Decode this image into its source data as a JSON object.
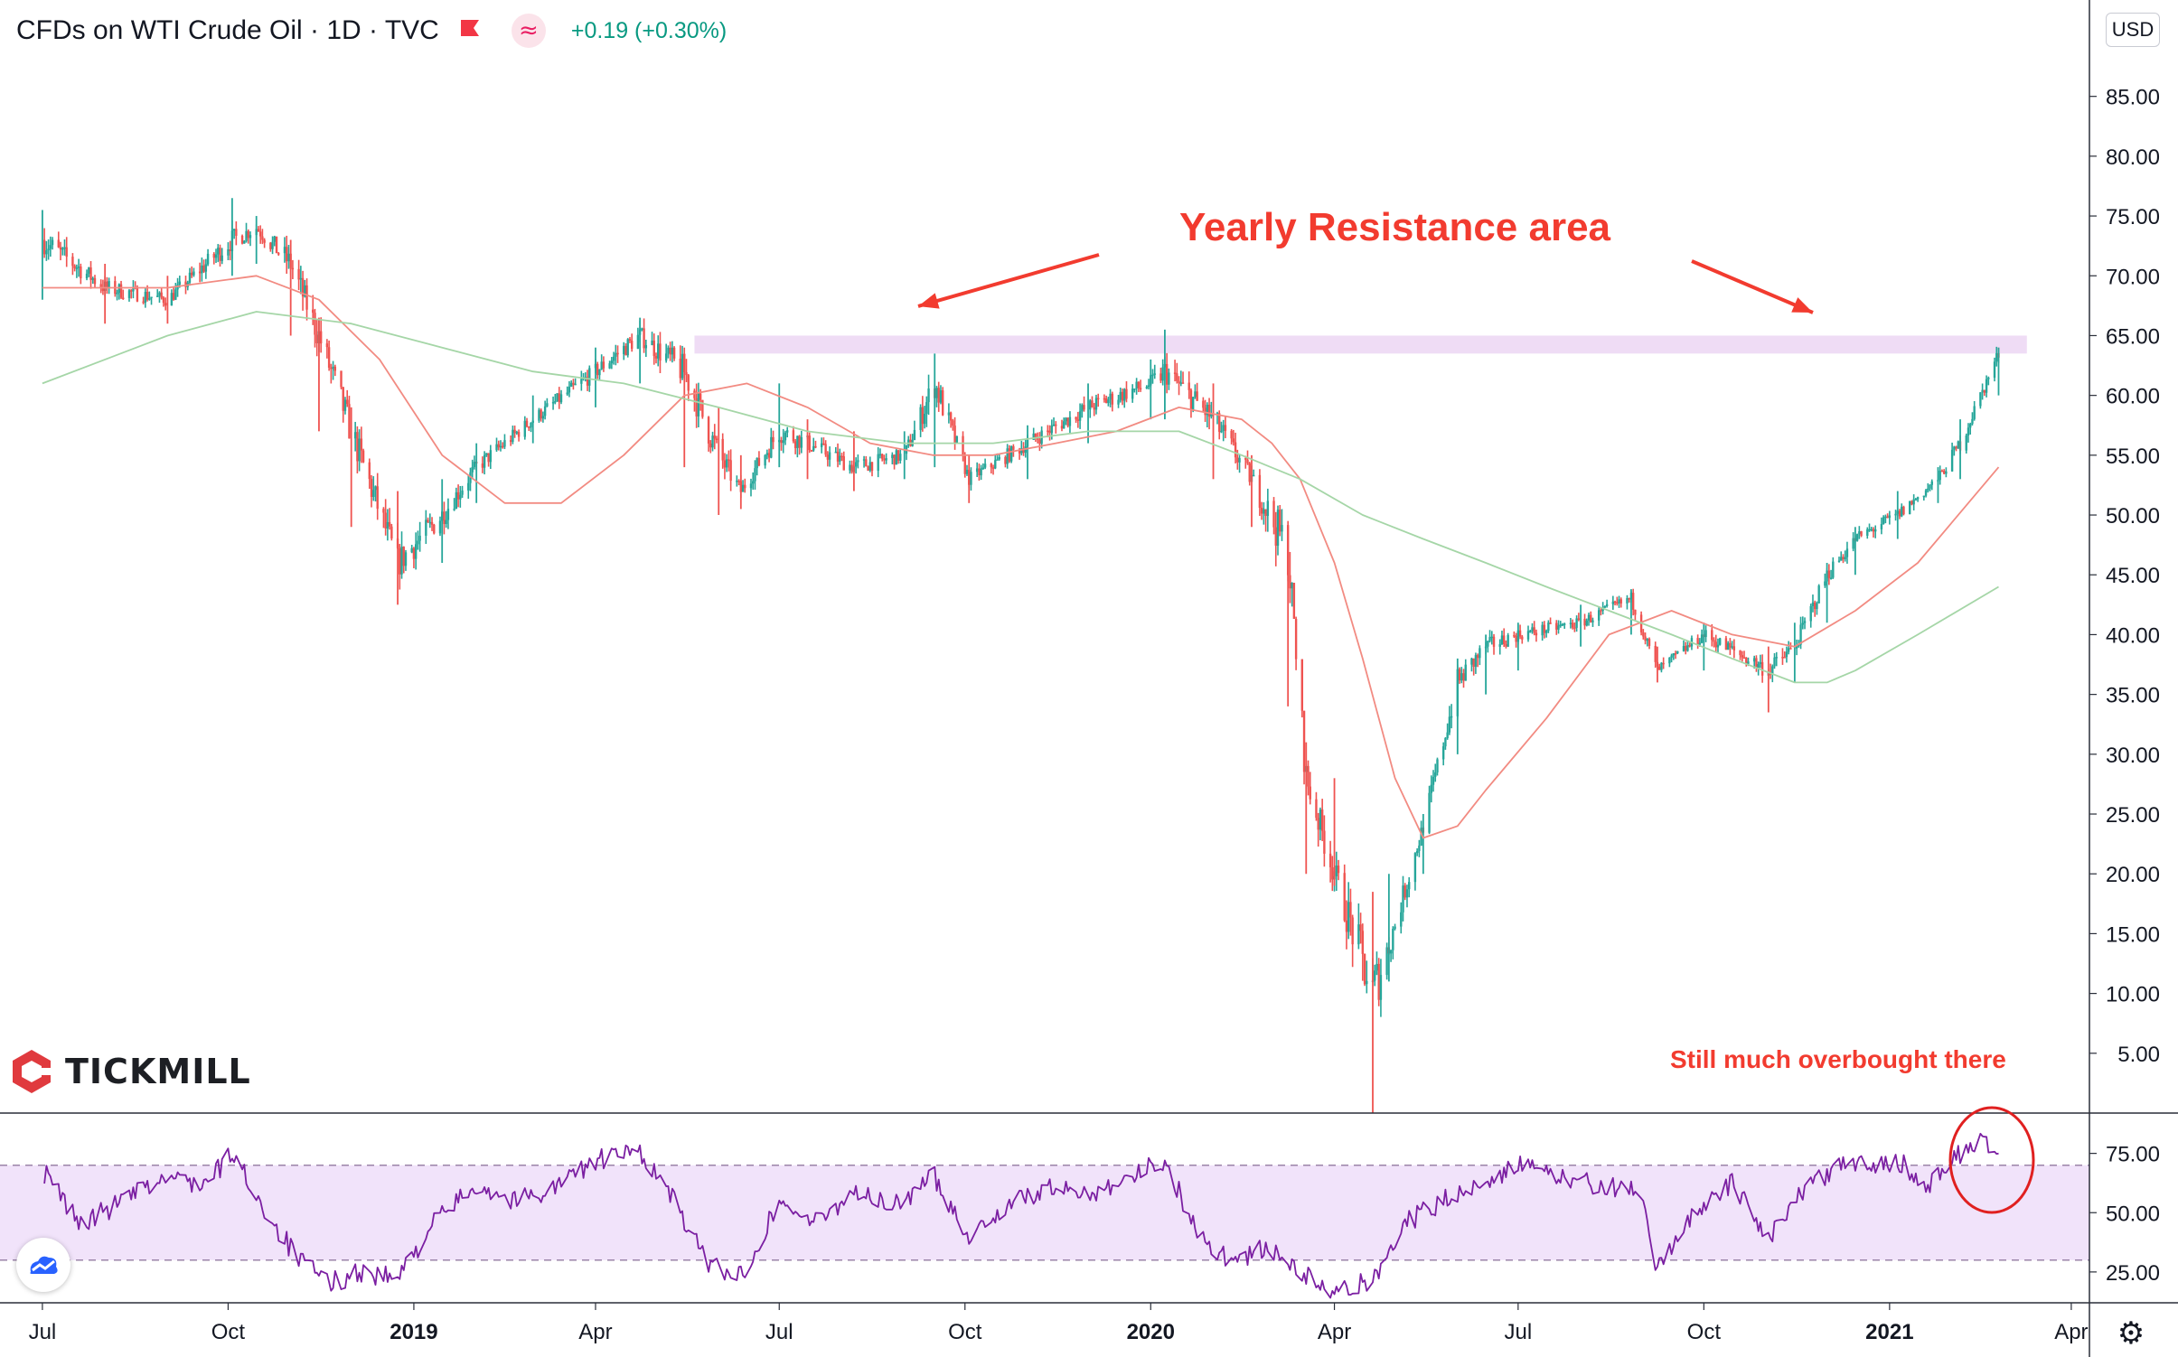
{
  "header": {
    "title": "CFDs on WTI Crude Oil · 1D · TVC",
    "change": "+0.19 (+0.30%)",
    "flag_icon": "red-flag-icon",
    "indicator_icon": "approx-wave-icon"
  },
  "currency_button": "USD",
  "logo": {
    "text": "TICKMILL",
    "icon": "tickmill-hexagon-icon"
  },
  "annotations": {
    "resistance_label": "Yearly Resistance area",
    "overbought_label": "Still much overbought there"
  },
  "colors": {
    "up_candle": "#26a69a",
    "down_candle": "#ef5350",
    "ema_fast": "#f28b82",
    "ema_slow": "#a5d6a7",
    "annotation_red": "#f23b2f",
    "rsi_line": "#7b1fa2",
    "rsi_band": "#f1e3fa",
    "resistance_zone": "#efdcf5"
  },
  "chart_data": [
    {
      "type": "line",
      "series_kind": "ohlc-candlestick (daily)",
      "x_tick_labels": [
        "Jul",
        "Oct",
        "2019",
        "Apr",
        "Jul",
        "Oct",
        "2020",
        "Apr",
        "Jul",
        "Oct",
        "2021",
        "Apr"
      ],
      "bold_x_ticks": [
        "2019",
        "2020",
        "2021"
      ],
      "y_tick_labels": [
        "5.00",
        "10.00",
        "15.00",
        "20.00",
        "25.00",
        "30.00",
        "35.00",
        "40.00",
        "45.00",
        "50.00",
        "55.00",
        "60.00",
        "65.00",
        "70.00",
        "75.00",
        "80.00",
        "85.00"
      ],
      "ylim": [
        0,
        92
      ],
      "y_axis_position": "right",
      "grid": false,
      "x": [
        "2018-07-01",
        "2018-08-01",
        "2018-09-01",
        "2018-10-03",
        "2018-10-15",
        "2018-11-01",
        "2018-11-15",
        "2018-12-01",
        "2018-12-24",
        "2019-01-15",
        "2019-02-01",
        "2019-03-01",
        "2019-04-01",
        "2019-04-23",
        "2019-05-15",
        "2019-06-01",
        "2019-06-12",
        "2019-07-01",
        "2019-07-15",
        "2019-08-07",
        "2019-09-01",
        "2019-09-16",
        "2019-10-03",
        "2019-11-01",
        "2019-12-01",
        "2020-01-01",
        "2020-01-08",
        "2020-02-01",
        "2020-02-20",
        "2020-03-09",
        "2020-03-18",
        "2020-04-01",
        "2020-04-20",
        "2020-04-28",
        "2020-05-15",
        "2020-06-01",
        "2020-06-15",
        "2020-07-01",
        "2020-08-01",
        "2020-08-26",
        "2020-09-08",
        "2020-10-01",
        "2020-11-02",
        "2020-11-15",
        "2020-12-01",
        "2020-12-15",
        "2021-01-05",
        "2021-01-25",
        "2021-02-05",
        "2021-02-24"
      ],
      "close": [
        73,
        69,
        68,
        73,
        74,
        71,
        65,
        57,
        46,
        50,
        54,
        58,
        62,
        65,
        62,
        55,
        52,
        57,
        56,
        54,
        55,
        61,
        53,
        56,
        59,
        61,
        62,
        58,
        53,
        47,
        28,
        20,
        10,
        14,
        24,
        36,
        39,
        40,
        41,
        43,
        37,
        40,
        37,
        39,
        45,
        48,
        50,
        53,
        56,
        63.5
      ],
      "high": [
        75.5,
        71,
        70,
        76.5,
        75,
        73,
        66.5,
        59,
        52,
        53,
        56,
        60,
        64,
        66.5,
        63.5,
        59,
        55,
        61,
        58,
        57,
        57,
        63.5,
        55,
        57.5,
        61,
        63,
        65.5,
        61,
        55,
        49,
        31,
        28,
        18.5,
        20,
        25,
        38,
        40,
        41,
        42.5,
        43.8,
        39,
        41,
        39,
        41,
        46,
        49,
        52,
        54,
        58,
        64
      ],
      "low": [
        68,
        66,
        66,
        70,
        71,
        65,
        57,
        49,
        42.5,
        46,
        51,
        56,
        59,
        61,
        54,
        50,
        50.5,
        54,
        53,
        52,
        53,
        54,
        51,
        53,
        56,
        58,
        58,
        53,
        49,
        34,
        20,
        19,
        0,
        11,
        20,
        30,
        35,
        37,
        39,
        40,
        36,
        37,
        33.5,
        36,
        41,
        45,
        48,
        51,
        53,
        60
      ],
      "overlays": [
        {
          "name": "",
          "color": "#f28b82",
          "x": [
            "2018-07-01",
            "2018-09-01",
            "2018-10-15",
            "2018-11-15",
            "2018-12-15",
            "2019-01-15",
            "2019-02-15",
            "2019-03-15",
            "2019-04-15",
            "2019-05-15",
            "2019-06-15",
            "2019-07-15",
            "2019-08-15",
            "2019-09-15",
            "2019-10-15",
            "2019-11-15",
            "2019-12-15",
            "2020-01-15",
            "2020-02-15",
            "2020-03-01",
            "2020-03-15",
            "2020-04-01",
            "2020-04-15",
            "2020-05-01",
            "2020-05-15",
            "2020-06-01",
            "2020-06-15",
            "2020-07-15",
            "2020-08-15",
            "2020-09-15",
            "2020-10-15",
            "2020-11-15",
            "2020-12-15",
            "2021-01-15",
            "2021-02-24"
          ],
          "y": [
            69,
            69,
            70,
            68,
            63,
            55,
            51,
            51,
            55,
            60,
            61,
            59,
            56,
            55,
            55,
            56,
            57,
            59,
            58,
            56,
            53,
            46,
            38,
            28,
            23,
            24,
            27,
            33,
            40,
            42,
            40,
            39,
            42,
            46,
            54
          ]
        },
        {
          "name": "",
          "color": "#a5d6a7",
          "x": [
            "2018-07-01",
            "2018-09-01",
            "2018-10-15",
            "2018-12-01",
            "2019-01-15",
            "2019-03-01",
            "2019-04-15",
            "2019-06-01",
            "2019-07-15",
            "2019-09-01",
            "2019-10-15",
            "2019-12-01",
            "2020-01-15",
            "2020-02-15",
            "2020-03-15",
            "2020-04-15",
            "2020-05-15",
            "2020-06-15",
            "2020-07-15",
            "2020-08-15",
            "2020-09-15",
            "2020-10-15",
            "2020-11-15",
            "2020-12-01",
            "2020-12-15",
            "2021-01-15",
            "2021-02-24"
          ],
          "y": [
            61,
            65,
            67,
            66,
            64,
            62,
            61,
            59,
            57,
            56,
            56,
            57,
            57,
            55,
            53,
            50,
            48,
            46,
            44,
            42,
            40,
            38,
            36,
            36,
            37,
            40,
            44
          ]
        }
      ],
      "resistance_zone": {
        "x": [
          "2019-05-20",
          "2021-03-10"
        ],
        "y": [
          63.5,
          65
        ]
      },
      "annotations": [
        "Yearly Resistance area",
        "Still much overbought there"
      ]
    },
    {
      "type": "line",
      "name": "",
      "y_tick_labels": [
        "25.00",
        "50.00",
        "75.00"
      ],
      "ylim": [
        12,
        92
      ],
      "band": [
        30,
        70
      ],
      "x": [
        "2018-07-01",
        "2018-07-20",
        "2018-08-10",
        "2018-09-01",
        "2018-09-20",
        "2018-10-03",
        "2018-10-20",
        "2018-11-05",
        "2018-11-20",
        "2018-12-05",
        "2018-12-24",
        "2019-01-10",
        "2019-02-01",
        "2019-02-20",
        "2019-03-10",
        "2019-04-01",
        "2019-04-23",
        "2019-05-10",
        "2019-05-25",
        "2019-06-12",
        "2019-07-01",
        "2019-07-20",
        "2019-08-07",
        "2019-08-25",
        "2019-09-16",
        "2019-10-03",
        "2019-10-20",
        "2019-11-10",
        "2019-12-01",
        "2019-12-20",
        "2020-01-08",
        "2020-01-25",
        "2020-02-10",
        "2020-02-28",
        "2020-03-15",
        "2020-04-01",
        "2020-04-20",
        "2020-05-05",
        "2020-05-25",
        "2020-06-10",
        "2020-07-01",
        "2020-07-20",
        "2020-08-10",
        "2020-08-30",
        "2020-09-08",
        "2020-09-25",
        "2020-10-15",
        "2020-11-02",
        "2020-11-20",
        "2020-12-10",
        "2021-01-05",
        "2021-01-20",
        "2021-02-05",
        "2021-02-15",
        "2021-02-24"
      ],
      "values": [
        68,
        45,
        55,
        65,
        62,
        75,
        50,
        30,
        20,
        25,
        22,
        45,
        62,
        55,
        60,
        72,
        76,
        55,
        30,
        23,
        55,
        45,
        60,
        52,
        65,
        40,
        52,
        60,
        58,
        65,
        72,
        40,
        30,
        35,
        25,
        15,
        22,
        45,
        55,
        62,
        70,
        65,
        62,
        58,
        25,
        50,
        62,
        40,
        60,
        70,
        72,
        62,
        75,
        82,
        72
      ]
    }
  ]
}
